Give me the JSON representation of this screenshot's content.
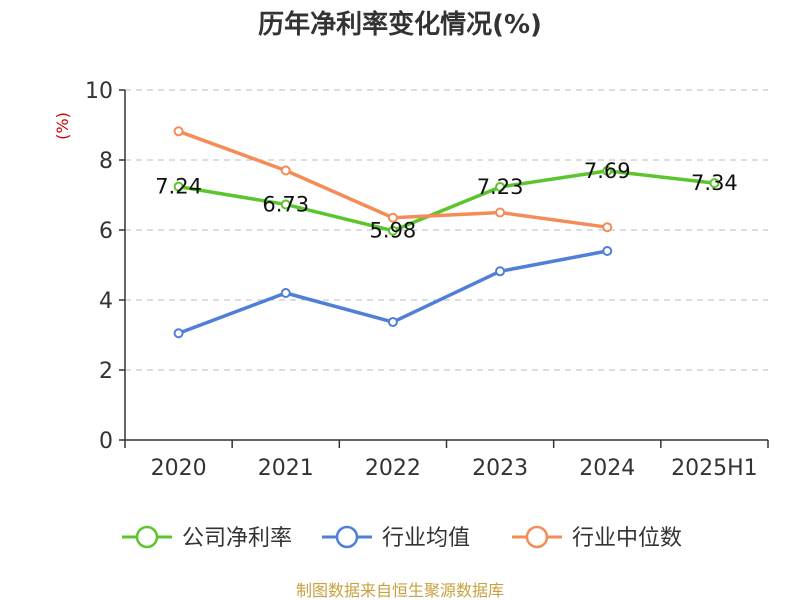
{
  "chart_data": {
    "type": "line",
    "title": "历年净利率变化情况(%)",
    "ylabel": "(%)",
    "xlabel": "",
    "categories": [
      "2020",
      "2021",
      "2022",
      "2023",
      "2024",
      "2025H1"
    ],
    "ylim": [
      0,
      10
    ],
    "yticks": [
      0,
      2,
      4,
      6,
      8,
      10
    ],
    "grid": true,
    "legend_position": "bottom",
    "series": [
      {
        "name": "公司净利率",
        "color": "#5cc52e",
        "values": [
          7.24,
          6.73,
          5.98,
          7.23,
          7.69,
          7.34
        ],
        "labels": [
          "7.24",
          "6.73",
          "5.98",
          "7.23",
          "7.69",
          "7.34"
        ]
      },
      {
        "name": "行业均值",
        "color": "#4f7fd6",
        "values": [
          3.05,
          4.2,
          3.37,
          4.82,
          5.4,
          null
        ]
      },
      {
        "name": "行业中位数",
        "color": "#f48c58",
        "values": [
          8.82,
          7.7,
          6.35,
          6.5,
          6.08,
          null
        ]
      }
    ],
    "source": "制图数据来自恒生聚源数据库"
  }
}
